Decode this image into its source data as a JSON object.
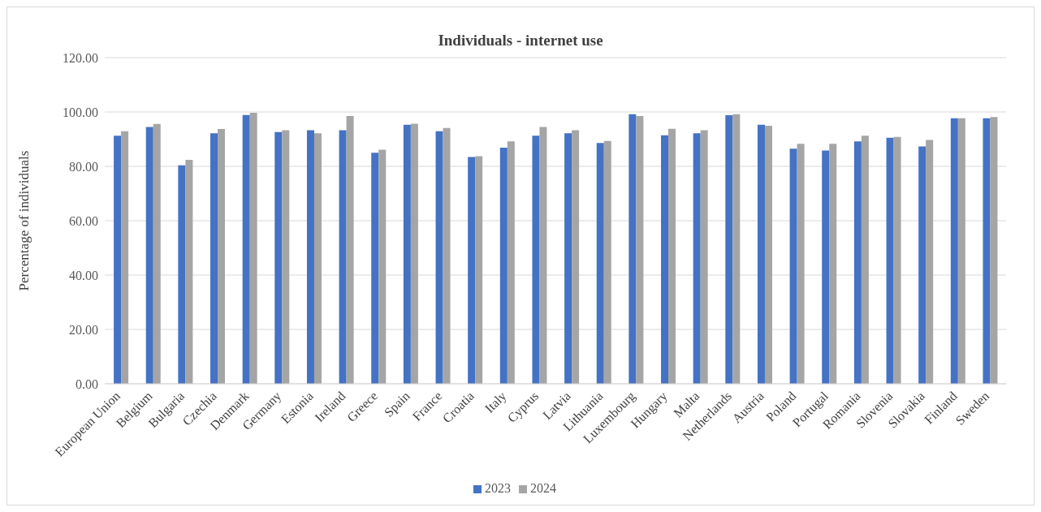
{
  "chart_data": {
    "type": "bar",
    "title": "Individuals  - internet use",
    "ylabel": "Percentage of individuals",
    "categories": [
      "European Union",
      "Belgium",
      "Bulgaria",
      "Czechia",
      "Denmark",
      "Germany",
      "Estonia",
      "Ireland",
      "Greece",
      "Spain",
      "France",
      "Croatia",
      "Italy",
      "Cyprus",
      "Latvia",
      "Lithuania",
      "Luxembourg",
      "Hungary",
      "Malta",
      "Netherlands",
      "Austria",
      "Poland",
      "Portugal",
      "Romania",
      "Slovenia",
      "Slovakia",
      "Finland",
      "Sweden"
    ],
    "series": [
      {
        "name": "2023",
        "color": "#4472c4",
        "values": [
          91.3,
          94.5,
          80.4,
          92.2,
          98.9,
          92.6,
          93.3,
          93.3,
          85.0,
          95.3,
          92.9,
          83.4,
          86.9,
          91.3,
          92.2,
          88.6,
          99.2,
          91.4,
          92.2,
          98.8,
          95.3,
          86.5,
          85.8,
          89.2,
          90.5,
          87.3,
          97.7,
          97.7
        ]
      },
      {
        "name": "2024",
        "color": "#a5a5a5",
        "values": [
          92.9,
          95.6,
          82.4,
          93.7,
          99.7,
          93.3,
          92.2,
          98.5,
          86.1,
          95.7,
          94.1,
          83.7,
          89.2,
          94.5,
          93.3,
          89.3,
          98.5,
          93.8,
          93.3,
          99.2,
          94.9,
          88.3,
          88.3,
          91.3,
          90.8,
          89.7,
          97.7,
          98.1
        ]
      }
    ],
    "ylim": [
      0,
      120
    ],
    "yticks": [
      {
        "value": 0,
        "label": "0.00"
      },
      {
        "value": 20,
        "label": "20.00"
      },
      {
        "value": 40,
        "label": "40.00"
      },
      {
        "value": 60,
        "label": "60.00"
      },
      {
        "value": 80,
        "label": "80.00"
      },
      {
        "value": 100,
        "label": "100.00"
      },
      {
        "value": 120,
        "label": "120.00"
      }
    ],
    "grid": "y",
    "legend": "bottom"
  }
}
